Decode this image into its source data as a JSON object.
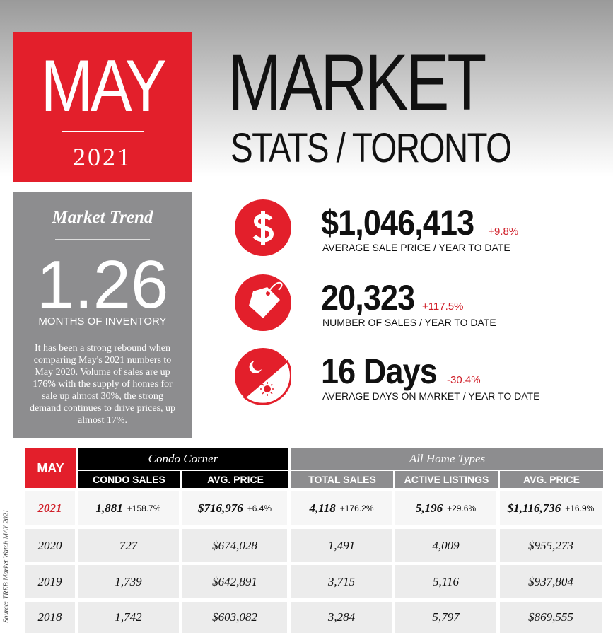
{
  "header": {
    "month": "MAY",
    "year": "2021",
    "title": "MARKET",
    "subtitle": "STATS / TORONTO"
  },
  "trend": {
    "title": "Market Trend",
    "value": "1.26",
    "label": "MONTHS OF INVENTORY",
    "text": "It has been a strong rebound when comparing May's 2021 numbers to May 2020.  Volume of sales are up 176% with the supply of homes for sale up almost 30%, the strong demand continues to drive prices, up almost 17%."
  },
  "stats": [
    {
      "value": "$1,046,413",
      "change": "+9.8%",
      "label": "AVERAGE SALE PRICE",
      "period": "/ YEAR TO DATE"
    },
    {
      "value": "20,323",
      "change": "+117.5%",
      "label": "NUMBER OF SALES",
      "period": "/ YEAR TO DATE"
    },
    {
      "value": "16 Days",
      "change": "-30.4%",
      "label": "AVERAGE DAYS ON MARKET",
      "period": "/ YEAR TO DATE"
    }
  ],
  "table": {
    "corner": "MAY",
    "groups": [
      "Condo Corner",
      "All Home Types"
    ],
    "columns": [
      "CONDO SALES",
      "AVG. PRICE",
      "TOTAL SALES",
      "ACTIVE LISTINGS",
      "AVG. PRICE"
    ],
    "rows": [
      [
        "2021",
        {
          "value": "1,881",
          "change": "+158.7%"
        },
        {
          "value": "$716,976",
          "change": "+6.4%"
        },
        {
          "value": "4,118",
          "change": "+176.2%"
        },
        {
          "value": "5,196",
          "change": "+29.6%"
        },
        {
          "value": "$1,116,736",
          "change": "+16.9%"
        }
      ],
      [
        "2020",
        "727",
        "$674,028",
        "1,491",
        "4,009",
        "$955,273"
      ],
      [
        "2019",
        "1,739",
        "$642,891",
        "3,715",
        "5,116",
        "$937,804"
      ],
      [
        "2018",
        "1,742",
        "$603,082",
        "3,284",
        "5,797",
        "$869,555"
      ]
    ]
  },
  "source": "Source: TREB Market Watch MAY 2021"
}
